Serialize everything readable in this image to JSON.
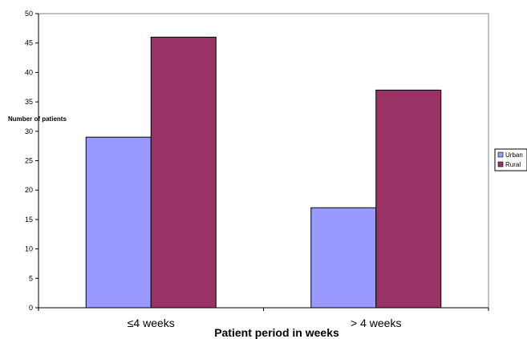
{
  "chart_data": {
    "type": "bar",
    "categories": [
      "≤4 weeks",
      "> 4 weeks"
    ],
    "series": [
      {
        "name": "Urban",
        "values": [
          29,
          17
        ],
        "color": "#9999ff"
      },
      {
        "name": "Rural",
        "values": [
          46,
          37
        ],
        "color": "#993366"
      }
    ],
    "xlabel": "Patient period in weeks",
    "ylabel": "Number of patients",
    "ylim": [
      0,
      50
    ],
    "yticks": [
      0,
      5,
      10,
      15,
      20,
      25,
      30,
      35,
      40,
      45,
      50
    ],
    "grid": false,
    "legend": "right"
  }
}
